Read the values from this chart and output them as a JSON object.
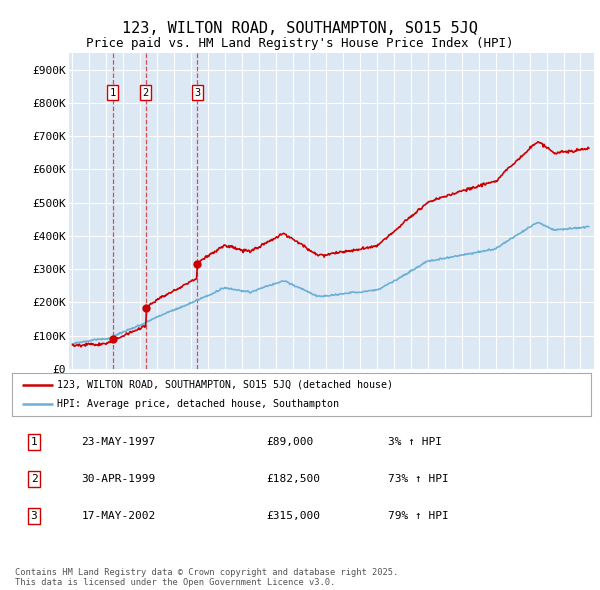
{
  "title": "123, WILTON ROAD, SOUTHAMPTON, SO15 5JQ",
  "subtitle": "Price paid vs. HM Land Registry's House Price Index (HPI)",
  "plot_bg_color": "#dce9f5",
  "red_line_label": "123, WILTON ROAD, SOUTHAMPTON, SO15 5JQ (detached house)",
  "blue_line_label": "HPI: Average price, detached house, Southampton",
  "transactions": [
    {
      "num": 1,
      "date": "23-MAY-1997",
      "price": 89000,
      "pct": "3%",
      "dir": "↑",
      "year": 1997.38
    },
    {
      "num": 2,
      "date": "30-APR-1999",
      "price": 182500,
      "pct": "73%",
      "dir": "↑",
      "year": 1999.33
    },
    {
      "num": 3,
      "date": "17-MAY-2002",
      "price": 315000,
      "pct": "79%",
      "dir": "↑",
      "year": 2002.38
    }
  ],
  "yticks": [
    0,
    100000,
    200000,
    300000,
    400000,
    500000,
    600000,
    700000,
    800000,
    900000
  ],
  "ytick_labels": [
    "£0",
    "£100K",
    "£200K",
    "£300K",
    "£400K",
    "£500K",
    "£600K",
    "£700K",
    "£800K",
    "£900K"
  ],
  "xmin": 1994.8,
  "xmax": 2025.8,
  "ymin": 0,
  "ymax": 950000,
  "footer": "Contains HM Land Registry data © Crown copyright and database right 2025.\nThis data is licensed under the Open Government Licence v3.0.",
  "hpi_color": "#6baed6",
  "price_color": "#cc0000",
  "grid_color": "#ffffff",
  "label_fontsize": 8,
  "title_fontsize": 11,
  "subtitle_fontsize": 9
}
